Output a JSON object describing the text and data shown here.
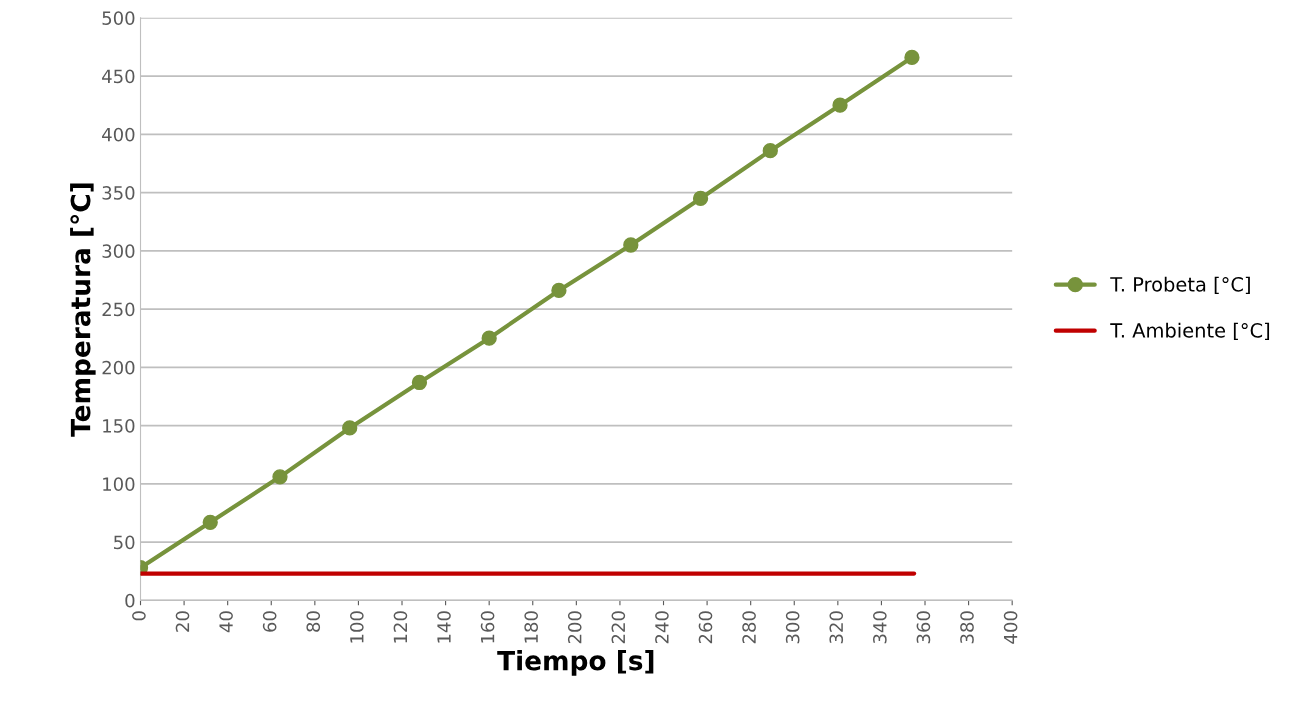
{
  "chart_data": {
    "type": "line",
    "xlabel": "Tiempo [s]",
    "ylabel": "Temperatura [°C]",
    "xlim": [
      0,
      400
    ],
    "xticks": [
      0,
      20,
      40,
      60,
      80,
      100,
      120,
      140,
      160,
      180,
      200,
      220,
      240,
      260,
      280,
      300,
      320,
      340,
      360,
      380,
      400
    ],
    "ylim": [
      0,
      500
    ],
    "yticks": [
      0,
      50,
      100,
      150,
      200,
      250,
      300,
      350,
      400,
      450,
      500
    ],
    "grid": "y",
    "legend": "right",
    "series": [
      {
        "name": "T. Probeta [°C]",
        "color": "#77933c",
        "marker": "circle",
        "x": [
          0,
          32,
          64,
          96,
          128,
          160,
          192,
          225,
          257,
          289,
          321,
          354
        ],
        "values": [
          28,
          67,
          106,
          148,
          187,
          225,
          266,
          305,
          345,
          386,
          425,
          466
        ]
      },
      {
        "name": "T. Ambiente [°C]",
        "color": "#c00000",
        "marker": "none",
        "x": [
          0,
          355
        ],
        "values": [
          23,
          23
        ]
      }
    ]
  }
}
